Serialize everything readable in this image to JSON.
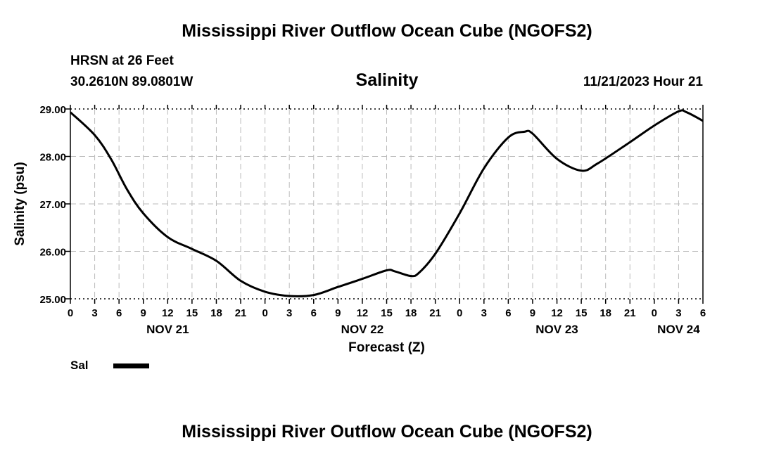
{
  "header": {
    "title": "Mississippi River Outflow Ocean Cube (NGOFS2)",
    "station": "HRSN at 26 Feet",
    "coords": "30.2610N  89.0801W",
    "subtitle": "Salinity",
    "datetime": "11/21/2023 Hour 21"
  },
  "footer": {
    "title": "Mississippi River Outflow Ocean Cube (NGOFS2)"
  },
  "legend": {
    "label": "Sal"
  },
  "colors": {
    "line": "#000000",
    "grid": "#bbbbbb"
  },
  "chart_data": {
    "type": "line",
    "title": "Salinity",
    "xlabel": "Forecast (Z)",
    "ylabel": "Salinity (psu)",
    "ylim": [
      25.0,
      29.0
    ],
    "xlim_hours": [
      0,
      78
    ],
    "x_unit": "hours from NOV 21 00Z",
    "yticks": [
      "25.00",
      "26.00",
      "27.00",
      "28.00",
      "29.00"
    ],
    "ytick_values": [
      25,
      26,
      27,
      28,
      29
    ],
    "xtick_labels": [
      "0",
      "3",
      "6",
      "9",
      "12",
      "15",
      "18",
      "21",
      "0",
      "3",
      "6",
      "9",
      "12",
      "15",
      "18",
      "21",
      "0",
      "3",
      "6",
      "9",
      "12",
      "15",
      "18",
      "21",
      "0",
      "3",
      "6"
    ],
    "day_labels": [
      {
        "label": "NOV 21",
        "hour": 12
      },
      {
        "label": "NOV 22",
        "hour": 36
      },
      {
        "label": "NOV 23",
        "hour": 60
      },
      {
        "label": "NOV 24",
        "hour": 75
      }
    ],
    "grid": true,
    "series": [
      {
        "name": "Sal",
        "x": [
          0,
          3,
          5,
          7,
          9,
          12,
          15,
          18,
          21,
          24,
          27,
          30,
          33,
          36,
          39,
          40,
          42,
          43,
          45,
          48,
          51,
          54,
          56,
          57,
          60,
          63,
          65,
          69,
          72,
          75,
          76,
          78
        ],
        "y": [
          28.93,
          28.45,
          27.95,
          27.3,
          26.8,
          26.3,
          26.05,
          25.8,
          25.38,
          25.15,
          25.06,
          25.08,
          25.25,
          25.42,
          25.6,
          25.58,
          25.48,
          25.55,
          25.95,
          26.8,
          27.75,
          28.4,
          28.52,
          28.48,
          27.95,
          27.7,
          27.85,
          28.3,
          28.65,
          28.95,
          28.93,
          28.75
        ]
      }
    ]
  }
}
